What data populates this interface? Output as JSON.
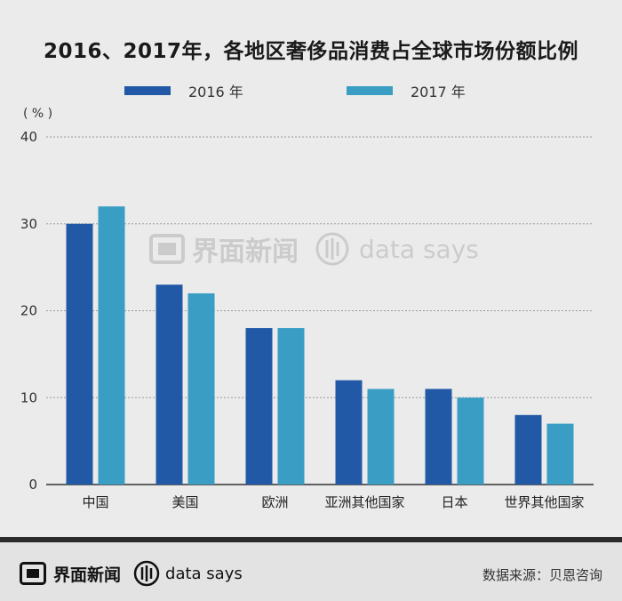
{
  "title": "2016、2017年，各地区奢侈品消费占全球市场份额比例",
  "unit_label": "( % )",
  "legend": [
    {
      "label": "2016 年",
      "color": "#2159a6"
    },
    {
      "label": "2017 年",
      "color": "#3a9dc4"
    }
  ],
  "watermark": {
    "brand": "界面新闻",
    "tagline": "data says"
  },
  "footer": {
    "brand": "界面新闻",
    "tagline": "data says",
    "source": "数据来源：贝恩咨询"
  },
  "chart_data": {
    "type": "bar",
    "categories": [
      "中国",
      "美国",
      "欧洲",
      "亚洲其他国家",
      "日本",
      "世界其他国家"
    ],
    "series": [
      {
        "name": "2016 年",
        "values": [
          30,
          23,
          18,
          12,
          11,
          8
        ],
        "color": "#2159a6"
      },
      {
        "name": "2017 年",
        "values": [
          32,
          22,
          18,
          11,
          10,
          7
        ],
        "color": "#3a9dc4"
      }
    ],
    "yticks": [
      0,
      10,
      20,
      30,
      40
    ],
    "ylim": [
      0,
      40
    ],
    "ylabel": "( % )",
    "grid": true,
    "legend_position": "top"
  }
}
